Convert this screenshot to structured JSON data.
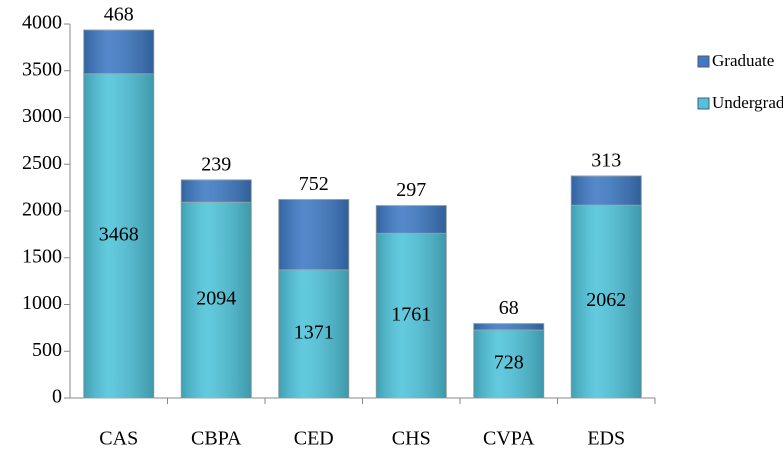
{
  "chart_data": {
    "type": "stacked_bar",
    "categories": [
      "CAS",
      "CBPA",
      "CED",
      "CHS",
      "CVPA",
      "EDS"
    ],
    "series": [
      {
        "name": "Undergraduate",
        "color": "#4ec3da",
        "values": [
          3468,
          2094,
          1371,
          1761,
          728,
          2062
        ]
      },
      {
        "name": "Graduate",
        "color": "#3d79c4",
        "values": [
          468,
          239,
          752,
          297,
          68,
          313
        ]
      }
    ],
    "ylim": [
      0,
      4000
    ],
    "yticks": [
      0,
      500,
      1000,
      1500,
      2000,
      2500,
      3000,
      3500,
      4000
    ],
    "legend": "right"
  }
}
